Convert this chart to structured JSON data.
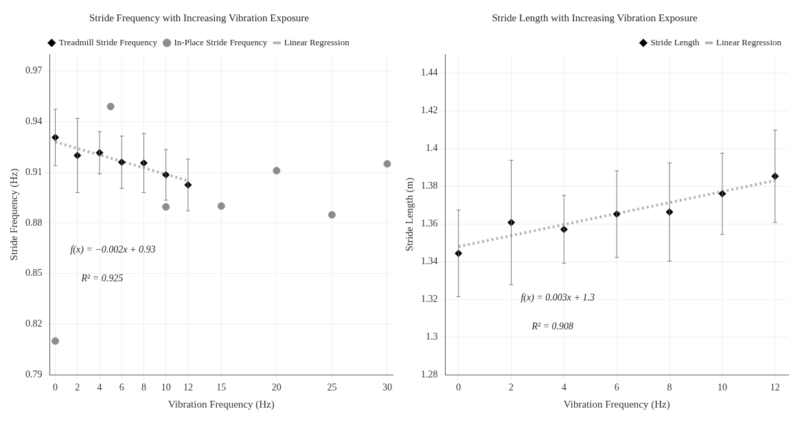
{
  "chart_data": [
    {
      "type": "scatter",
      "title": "Stride Frequency with Increasing Vibration Exposure",
      "xlabel": "Vibration Frequency (Hz)",
      "ylabel": "Stride Frequency (Hz)",
      "xlim": [
        -0.5,
        30.5
      ],
      "xticks": [
        0,
        2,
        4,
        6,
        8,
        10,
        12,
        15,
        20,
        25,
        30
      ],
      "ylim": [
        0.79,
        0.98
      ],
      "yticks": [
        0.79,
        0.82,
        0.85,
        0.88,
        0.91,
        0.94,
        0.97
      ],
      "grid": true,
      "legend": "top",
      "annotations": [
        "f(x) = −0.002x + 0.93",
        "R² = 0.925"
      ],
      "series": [
        {
          "name": "Treadmill Stride Frequency",
          "type": "scatter",
          "marker": "diamond",
          "color": "#000000",
          "x": [
            0,
            2,
            4,
            6,
            8,
            10,
            12
          ],
          "values": [
            0.9307,
            0.92,
            0.9216,
            0.916,
            0.9155,
            0.9085,
            0.9025
          ],
          "errors": [
            0.0167,
            0.022,
            0.0125,
            0.0155,
            0.0175,
            0.015,
            0.0153
          ]
        },
        {
          "name": "In-Place Stride Frequency",
          "type": "scatter",
          "marker": "circle",
          "color": "#8c8c8c",
          "x": [
            0,
            5,
            10,
            15,
            20,
            25,
            30
          ],
          "values": [
            0.81,
            0.949,
            0.8895,
            0.89,
            0.911,
            0.8848,
            0.915
          ]
        },
        {
          "name": "Linear Regression",
          "type": "line",
          "marker": "none",
          "line_style": "dotted",
          "color": "#b4b4b4",
          "x": [
            0,
            12
          ],
          "values": [
            0.928,
            0.905
          ]
        }
      ]
    },
    {
      "type": "scatter",
      "title": "Stride Length with Increasing Vibration Exposure",
      "xlabel": "Vibration Frequency (Hz)",
      "ylabel": "Stride Length (m)",
      "xlim": [
        -0.5,
        12.5
      ],
      "xticks": [
        0,
        2,
        4,
        6,
        8,
        10,
        12
      ],
      "ylim": [
        1.28,
        1.45
      ],
      "yticks": [
        1.28,
        1.3,
        1.32,
        1.34,
        1.36,
        1.38,
        1.4,
        1.42,
        1.44
      ],
      "grid": true,
      "legend": "top right",
      "annotations": [
        "f(x) = 0.003x + 1.3",
        "R² = 0.908"
      ],
      "series": [
        {
          "name": "Stride Length",
          "type": "scatter",
          "marker": "diamond",
          "color": "#000000",
          "x": [
            0,
            2,
            4,
            6,
            8,
            10,
            12
          ],
          "values": [
            1.3444,
            1.3608,
            1.3571,
            1.3652,
            1.3663,
            1.376,
            1.3853
          ],
          "errors": [
            0.023,
            0.033,
            0.018,
            0.023,
            0.026,
            0.0215,
            0.0245
          ]
        },
        {
          "name": "Linear Regression",
          "type": "line",
          "marker": "none",
          "line_style": "dotted",
          "color": "#b4b4b4",
          "x": [
            0,
            12
          ],
          "values": [
            1.348,
            1.383
          ]
        }
      ]
    }
  ]
}
